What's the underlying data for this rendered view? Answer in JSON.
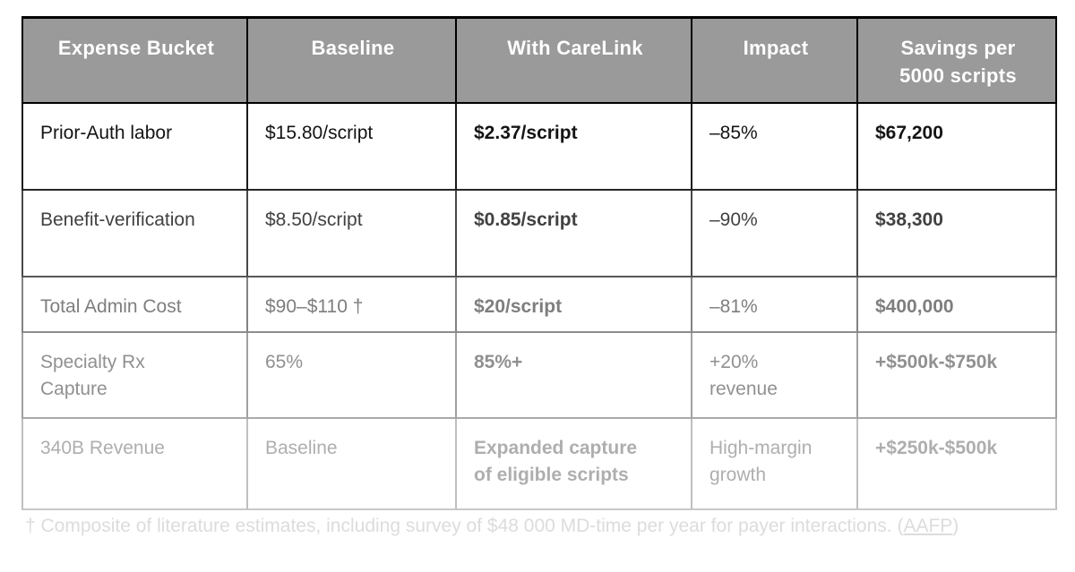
{
  "colors": {
    "page_bg": "#ffffff",
    "header_bg": "#9a9a9a",
    "header_text": "#ffffff",
    "header_border": "#000000",
    "row1_text": "#141414",
    "row1_border": "#1a1a1a",
    "row1_border_b": "#262626",
    "row2_text": "#414141",
    "row2_border": "#484848",
    "row2_border_b": "#585858",
    "row3_text": "#7e7e7e",
    "row3_border": "#828282",
    "row3_border_b": "#8d8d8d",
    "row4_text": "#909090",
    "row4_border": "#a0a0a0",
    "row4_border_b": "#aaaaaa",
    "row5_text": "#aeaeae",
    "row5_border": "#bfbfbf",
    "row5_border_b": "#c8c8c8",
    "footnote_text": "#dcdcdc"
  },
  "table": {
    "columns": [
      "Expense Bucket",
      "Baseline",
      "With CareLink",
      "Impact",
      "Savings per\n5000 scripts"
    ],
    "rows": [
      {
        "cells": [
          "Prior-Auth labor",
          "$15.80/script",
          "$2.37/script",
          "–85%",
          "$67,200"
        ]
      },
      {
        "cells": [
          "Benefit-verification",
          "$8.50/script",
          "$0.85/script",
          "–90%",
          "$38,300"
        ]
      },
      {
        "cells": [
          "Total Admin Cost",
          "$90–$110 †",
          "$20/script",
          "–81%",
          "$400,000"
        ]
      },
      {
        "cells": [
          "Specialty Rx\nCapture",
          "65%",
          "85%+",
          "+20%\nrevenue",
          "+$500k-$750k"
        ]
      },
      {
        "cells": [
          "340B Revenue",
          "Baseline",
          "Expanded capture\nof eligible scripts",
          "High-margin\ngrowth",
          "+$250k-$500k"
        ]
      }
    ]
  },
  "footnote": {
    "text": "† Composite of literature estimates, including survey of $48 000 MD-time per year for payer interactions. (",
    "link_label": "AAFP",
    "suffix": ")"
  }
}
